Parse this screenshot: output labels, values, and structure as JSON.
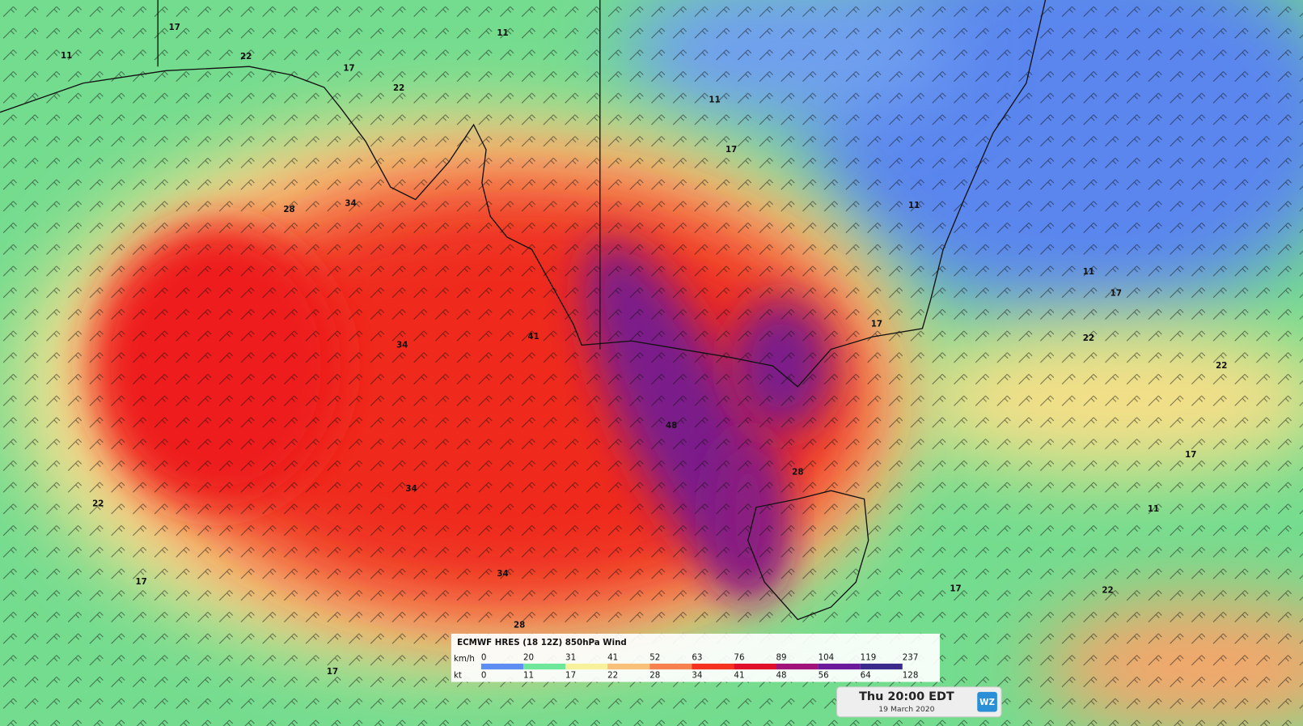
{
  "map": {
    "contour_labels": [
      17,
      11,
      22,
      17,
      22,
      28,
      34,
      34,
      41,
      48,
      28,
      17,
      11,
      17,
      22,
      22,
      17,
      11,
      22,
      17,
      17,
      28,
      34,
      34,
      22,
      17,
      11,
      17,
      11,
      11
    ]
  },
  "legend": {
    "title": "ECMWF HRES (18 12Z) 850hPa Wind",
    "units": [
      "km/h",
      "kt"
    ],
    "kmh": [
      0,
      20,
      31,
      41,
      52,
      63,
      76,
      89,
      104,
      119,
      237
    ],
    "kt": [
      0,
      11,
      17,
      22,
      28,
      34,
      41,
      48,
      56,
      64,
      128
    ],
    "colors": [
      "#5f8ef2",
      "#6ee79a",
      "#f6f19a",
      "#f9c07a",
      "#f7814f",
      "#f4321f",
      "#e0102a",
      "#a0147a",
      "#6a1a9a",
      "#3a2a8c"
    ]
  },
  "timestamp": {
    "time": "Thu 20:00 EDT",
    "date": "19 March 2020"
  },
  "logo": "WZ"
}
